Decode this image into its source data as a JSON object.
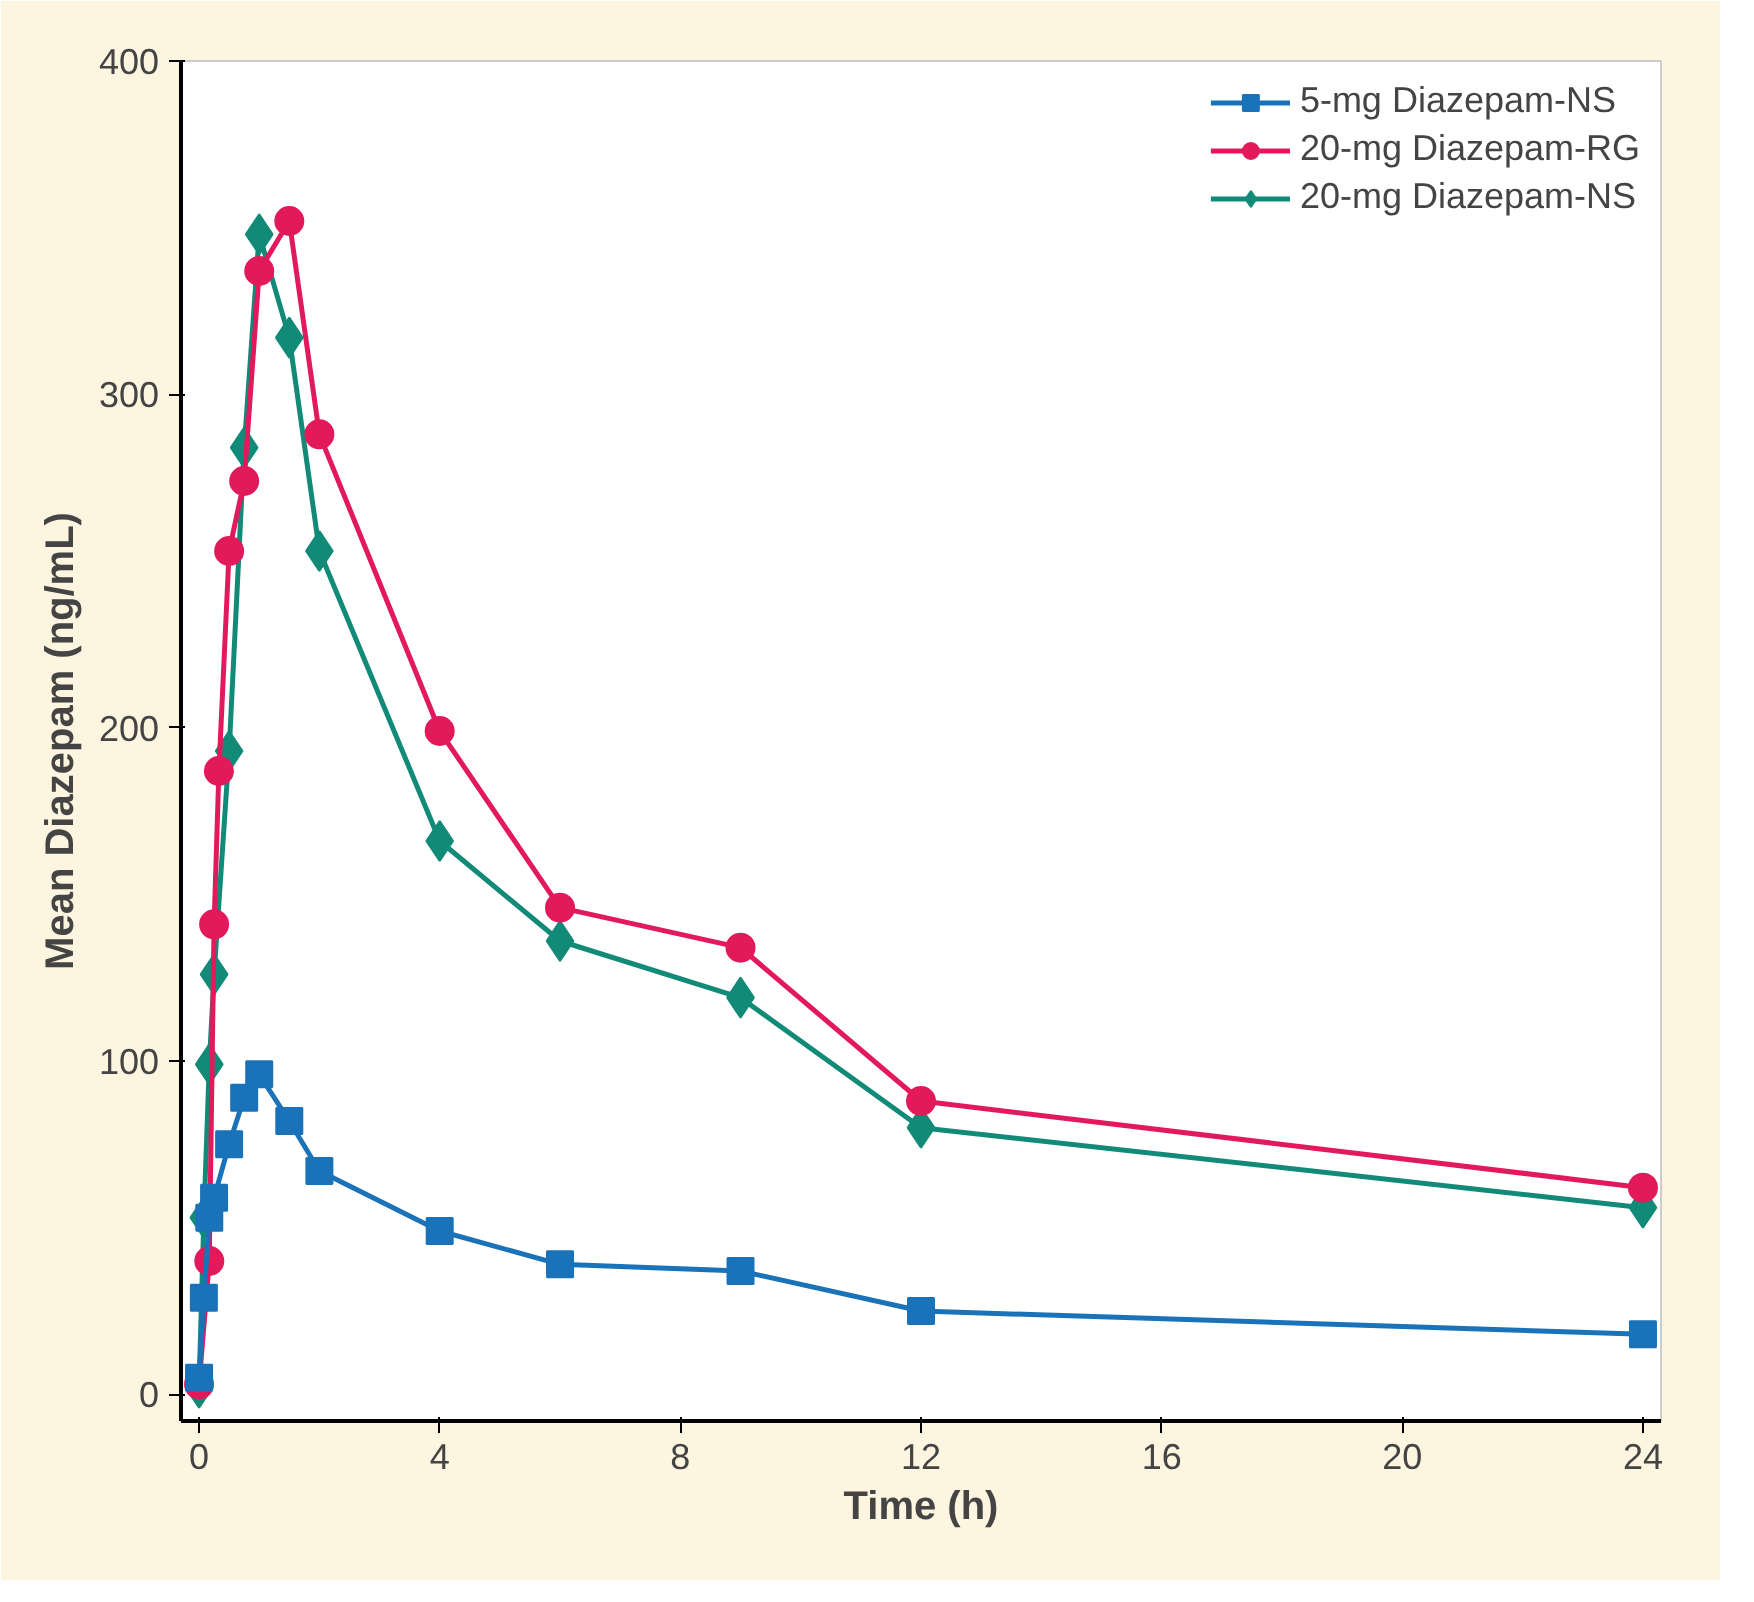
{
  "chart_data": {
    "type": "line",
    "xlabel": "Time (h)",
    "ylabel": "Mean Diazepam (ng/mL)",
    "xlim": [
      -0.3,
      24.3
    ],
    "ylim": [
      -8,
      400
    ],
    "xticks": [
      0,
      4,
      8,
      12,
      16,
      20,
      24
    ],
    "yticks": [
      0,
      100,
      200,
      300,
      400
    ],
    "grid": false,
    "legend": "top right",
    "line_style": "solid",
    "series": [
      {
        "name": "5-mg Diazepam-NS",
        "color": "#1a72b8",
        "marker": "square",
        "x": [
          0,
          0.08,
          0.17,
          0.25,
          0.5,
          0.75,
          1,
          1.5,
          2,
          4,
          6,
          9,
          12,
          24
        ],
        "values": [
          5,
          29,
          53,
          59,
          75,
          89,
          96,
          82,
          67,
          49,
          39,
          37,
          25,
          18
        ]
      },
      {
        "name": "20-mg Diazepam-RG",
        "color": "#e2195a",
        "marker": "circle",
        "x": [
          0,
          0.17,
          0.25,
          0.33,
          0.5,
          0.75,
          1,
          1.5,
          2,
          4,
          6,
          9,
          12,
          24
        ],
        "values": [
          3,
          40,
          141,
          187,
          253,
          274,
          337,
          352,
          288,
          199,
          146,
          134,
          88,
          62
        ]
      },
      {
        "name": "20-mg Diazepam-NS",
        "color": "#118a78",
        "marker": "diamond",
        "x": [
          0,
          0.08,
          0.17,
          0.25,
          0.5,
          0.75,
          1,
          1.5,
          2,
          4,
          6,
          9,
          12,
          24
        ],
        "values": [
          2,
          53,
          99,
          126,
          193,
          284,
          348,
          317,
          253,
          166,
          136,
          119,
          80,
          56
        ]
      }
    ]
  }
}
